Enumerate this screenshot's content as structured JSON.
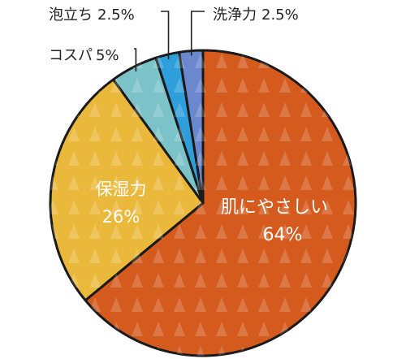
{
  "chart_data": {
    "type": "pie",
    "categories": [
      "肌にやさしい",
      "保湿力",
      "コスパ",
      "泡立ち",
      "洗浄力"
    ],
    "values": [
      64,
      26,
      5,
      2.5,
      2.5
    ],
    "labels": [
      "肌にやさしい",
      "保湿力",
      "コスパ",
      "泡立ち",
      "洗浄力"
    ],
    "value_labels": [
      "64%",
      "26%",
      "5%",
      "2.5%",
      "2.5%"
    ],
    "colors": [
      "#d45a1d",
      "#eab83a",
      "#7bc3c8",
      "#2f9fdc",
      "#6b88cf"
    ],
    "start_angle_deg": 0,
    "direction": "clockwise",
    "legend": "none",
    "label_style": "inside for large slices, callout lines for small slices"
  }
}
